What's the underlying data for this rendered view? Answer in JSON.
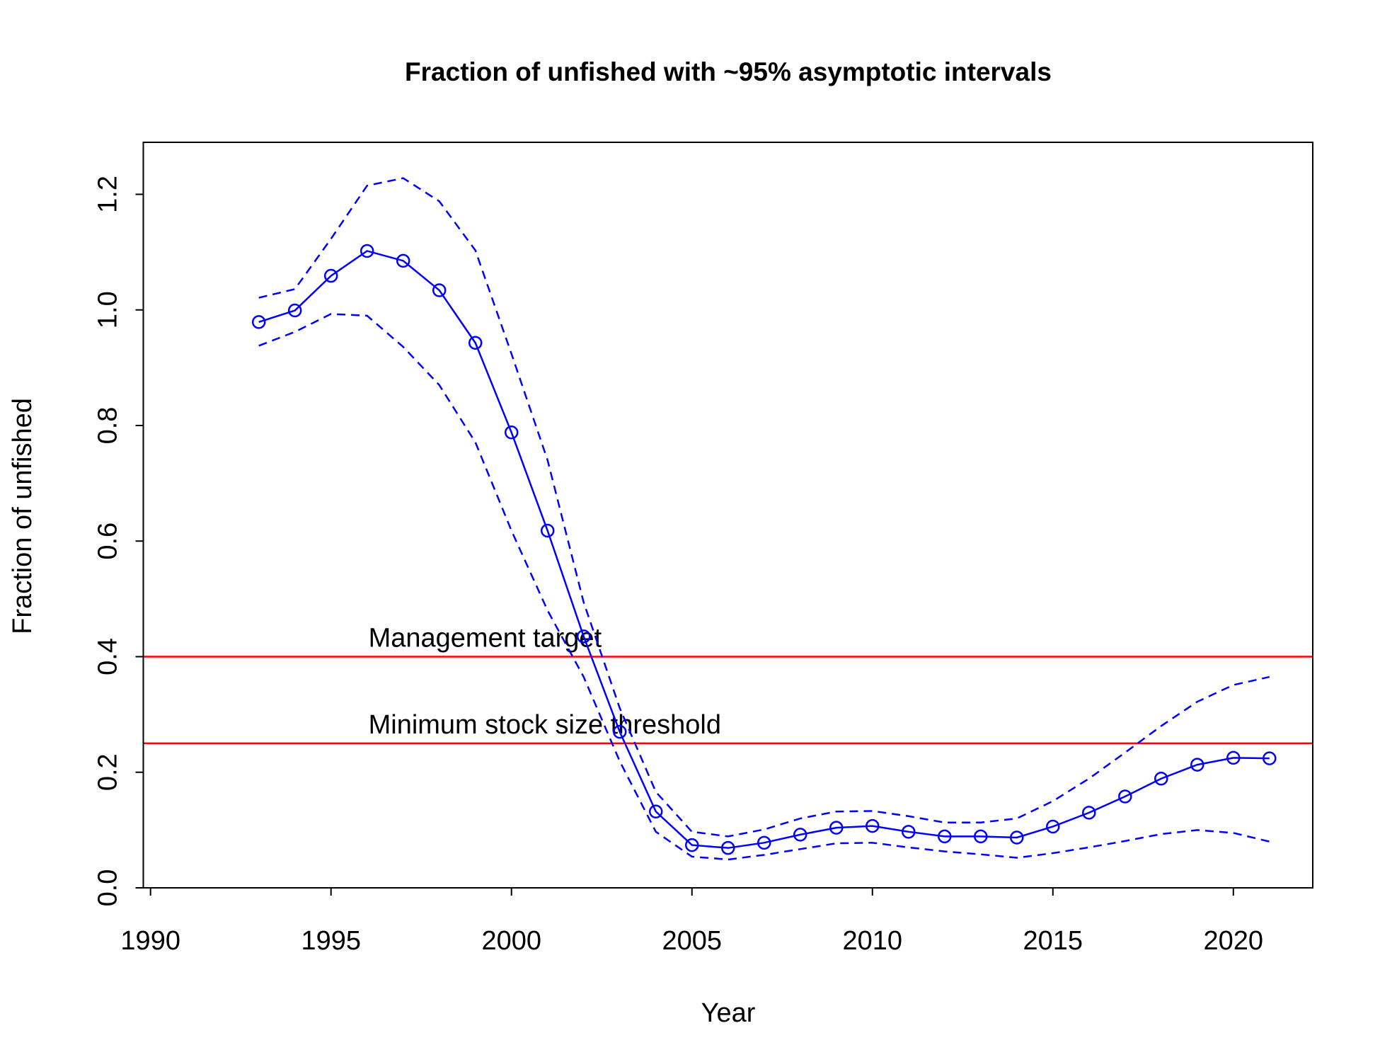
{
  "chart_data": {
    "type": "line",
    "title": "Fraction of unfished with ~95% asymptotic intervals",
    "x_label": "Year",
    "y_label": "Fraction of unfished",
    "x": [
      1993,
      1994,
      1995,
      1996,
      1997,
      1998,
      1999,
      2000,
      2001,
      2002,
      2003,
      2004,
      2005,
      2006,
      2007,
      2008,
      2009,
      2010,
      2011,
      2012,
      2013,
      2014,
      2015,
      2016,
      2017,
      2018,
      2019,
      2020,
      2021
    ],
    "series": [
      {
        "color": "#0000ff",
        "style": "solid",
        "markers": true,
        "values": [
          0.979,
          0.999,
          1.059,
          1.102,
          1.085,
          1.034,
          0.943,
          0.788,
          0.618,
          0.435,
          0.27,
          0.132,
          0.074,
          0.069,
          0.078,
          0.092,
          0.104,
          0.107,
          0.097,
          0.089,
          0.089,
          0.087,
          0.106,
          0.13,
          0.158,
          0.189,
          0.213,
          0.225,
          0.224
        ]
      },
      {
        "color": "#0000ff",
        "style": "dashed",
        "markers": false,
        "values": [
          1.021,
          1.036,
          1.123,
          1.215,
          1.228,
          1.188,
          1.103,
          0.924,
          0.74,
          0.494,
          0.311,
          0.166,
          0.097,
          0.089,
          0.101,
          0.12,
          0.132,
          0.133,
          0.124,
          0.113,
          0.113,
          0.12,
          0.15,
          0.189,
          0.234,
          0.28,
          0.322,
          0.351,
          0.365
        ]
      },
      {
        "color": "#0000ff",
        "style": "dashed",
        "markers": false,
        "values": [
          0.938,
          0.962,
          0.993,
          0.99,
          0.936,
          0.87,
          0.771,
          0.618,
          0.48,
          0.365,
          0.219,
          0.097,
          0.054,
          0.049,
          0.057,
          0.067,
          0.077,
          0.078,
          0.07,
          0.063,
          0.058,
          0.052,
          0.06,
          0.07,
          0.081,
          0.093,
          0.1,
          0.095,
          0.08
        ]
      }
    ],
    "reference_lines": [
      {
        "value": 0.4,
        "label": "Management target",
        "color": "#ff0000"
      },
      {
        "value": 0.25,
        "label": "Minimum stock size threshold",
        "color": "#ff0000"
      }
    ],
    "xlim": [
      1989.8,
      2022.2
    ],
    "ylim": [
      0,
      1.29
    ],
    "xticks": [
      1990,
      1995,
      2000,
      2005,
      2010,
      2015,
      2020
    ],
    "yticks": [
      {
        "value": 0,
        "label": "0.0"
      },
      0.2,
      0.4,
      0.6,
      0.8,
      {
        "value": 1,
        "label": "1.0"
      },
      1.2
    ]
  }
}
